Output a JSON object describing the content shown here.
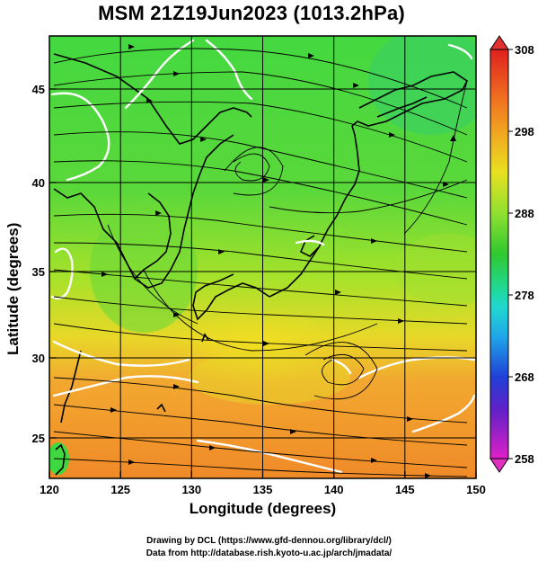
{
  "title": "MSM 21Z19Jun2023 (1013.2hPa)",
  "axes": {
    "xlabel": "Longitude (degrees)",
    "ylabel": "Latitude  (degrees)",
    "x_ticks": [
      "120",
      "125",
      "130",
      "135",
      "140",
      "145",
      "150"
    ],
    "y_ticks": [
      "25",
      "30",
      "35",
      "40",
      "45"
    ]
  },
  "colorbar": {
    "tick_labels": [
      "308",
      "298",
      "288",
      "278",
      "268",
      "258"
    ],
    "min": 258,
    "max": 308
  },
  "credits": {
    "line1": "Drawing by DCL (https://www.gfd-dennou.org/library/dcl/)",
    "line2": "Data from http://database.rish.kyoto-u.ac.jp/arch/jmadata/"
  },
  "colors": {
    "warm": "#f0a030",
    "mid": "#c8e020",
    "cool": "#40d840",
    "contour": "#ffffff",
    "streamline": "#000000"
  }
}
